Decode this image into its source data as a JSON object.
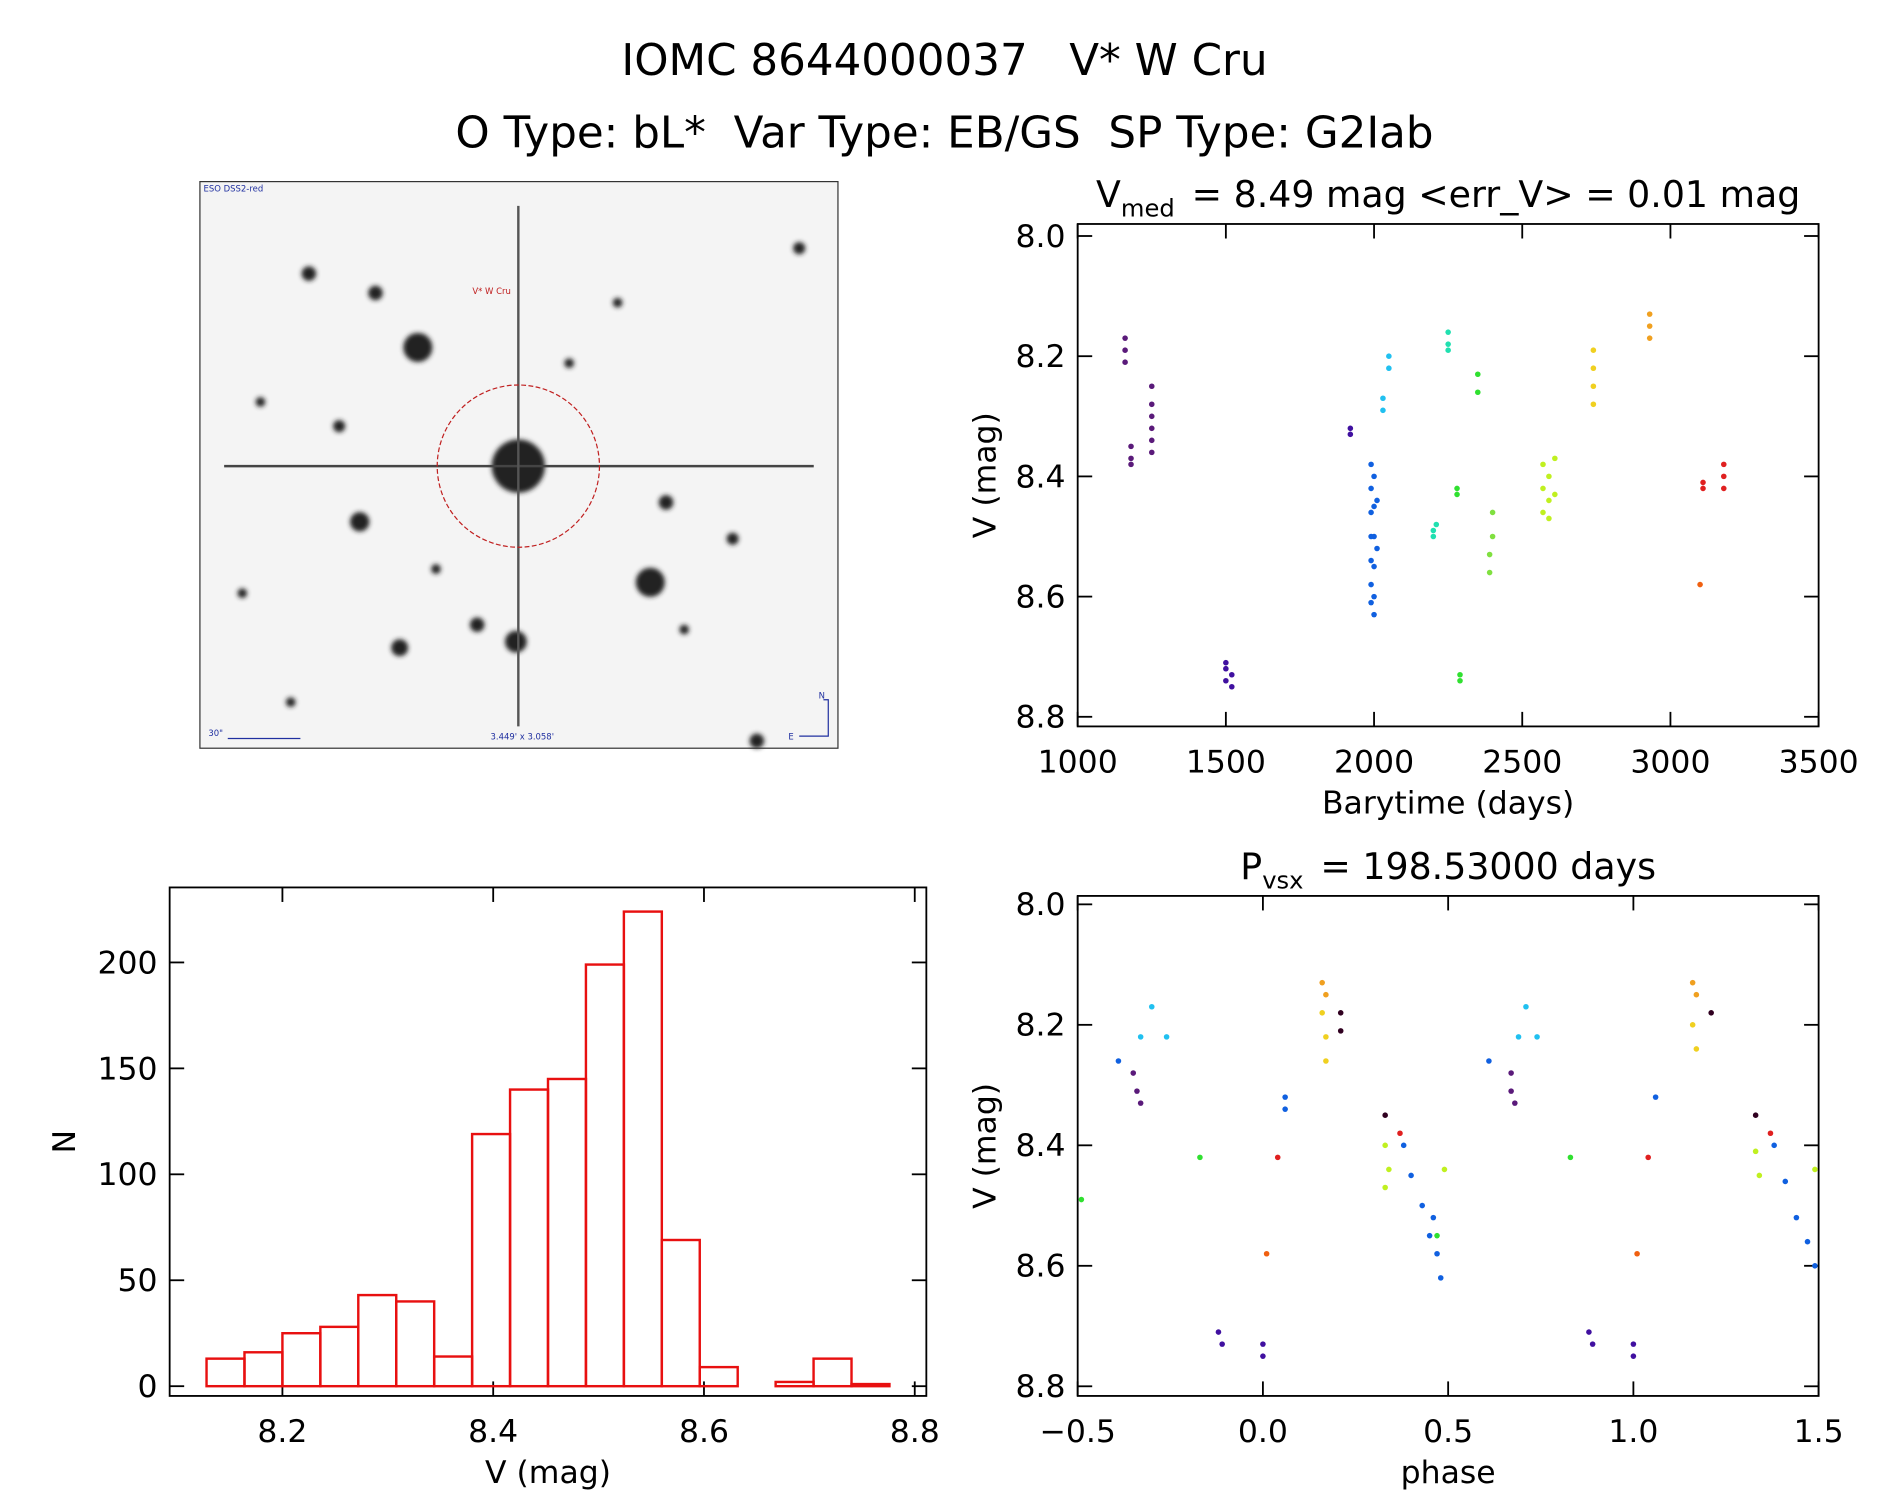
{
  "header": {
    "title": "IOMC 8644000037   V* W Cru",
    "subtitle": "O Type: bL*  Var Type: EB/GS  SP Type: G2Iab"
  },
  "image": {
    "source_label": "ESO DSS2-red",
    "target_label": "V* W Cru",
    "scale_label": "30\"",
    "size_label": "3.449' x 3.058'",
    "compass_n": "N",
    "compass_e": "E"
  },
  "chart_data": [
    {
      "type": "scatter",
      "title": "V",
      "title_subscript": "med",
      "title_rest": "= 8.49 mag <err_V> = 0.01 mag",
      "x_label": "Barytime (days)",
      "y_label": "V (mag)",
      "xlim": [
        1000,
        3500
      ],
      "xticks": [
        1000,
        1500,
        2000,
        2500,
        3000,
        3500
      ],
      "ylim": [
        8.816,
        7.98
      ],
      "yticks": [
        {
          "value": 8,
          "label": "8.0"
        },
        8.2,
        8.4,
        8.6,
        8.8
      ],
      "series": [
        {
          "color": "#5a1a7a",
          "x": [
            1160,
            1160,
            1160,
            1250,
            1250,
            1250,
            1250,
            1250,
            1250,
            1180,
            1180,
            1180
          ],
          "values": [
            8.17,
            8.19,
            8.21,
            8.25,
            8.28,
            8.3,
            8.32,
            8.34,
            8.36,
            8.35,
            8.37,
            8.38
          ]
        },
        {
          "color": "#4010a0",
          "x": [
            1500,
            1500,
            1500,
            1520,
            1520,
            1920,
            1920
          ],
          "values": [
            8.71,
            8.72,
            8.74,
            8.73,
            8.75,
            8.32,
            8.33
          ]
        },
        {
          "color": "#1060e0",
          "x": [
            1990,
            1990,
            1990,
            1990,
            1990,
            1990,
            1990,
            2000,
            2000,
            2000,
            2000,
            2000,
            2000,
            2010,
            2010
          ],
          "values": [
            8.38,
            8.42,
            8.46,
            8.5,
            8.54,
            8.58,
            8.61,
            8.4,
            8.45,
            8.5,
            8.55,
            8.6,
            8.63,
            8.44,
            8.52
          ]
        },
        {
          "color": "#20c0f0",
          "x": [
            2030,
            2030,
            2050,
            2050
          ],
          "values": [
            8.27,
            8.29,
            8.2,
            8.22
          ]
        },
        {
          "color": "#20e0b0",
          "x": [
            2200,
            2200,
            2210,
            2250,
            2250,
            2250
          ],
          "values": [
            8.49,
            8.5,
            8.48,
            8.16,
            8.18,
            8.19
          ]
        },
        {
          "color": "#30e030",
          "x": [
            2280,
            2280,
            2290,
            2290,
            2350,
            2350
          ],
          "values": [
            8.42,
            8.43,
            8.73,
            8.74,
            8.23,
            8.26
          ]
        },
        {
          "color": "#80e040",
          "x": [
            2390,
            2390,
            2400,
            2400
          ],
          "values": [
            8.53,
            8.56,
            8.46,
            8.5
          ]
        },
        {
          "color": "#c0f020",
          "x": [
            2570,
            2570,
            2570,
            2590,
            2590,
            2590,
            2610,
            2610
          ],
          "values": [
            8.38,
            8.42,
            8.46,
            8.4,
            8.44,
            8.47,
            8.37,
            8.43
          ]
        },
        {
          "color": "#f0d020",
          "x": [
            2740,
            2740,
            2740,
            2740
          ],
          "values": [
            8.19,
            8.22,
            8.25,
            8.28
          ]
        },
        {
          "color": "#f0a020",
          "x": [
            2930,
            2930,
            2930
          ],
          "values": [
            8.13,
            8.15,
            8.17
          ]
        },
        {
          "color": "#f06010",
          "x": [
            3100
          ],
          "values": [
            8.58
          ]
        },
        {
          "color": "#e02020",
          "x": [
            3110,
            3110,
            3180,
            3180,
            3180
          ],
          "values": [
            8.41,
            8.42,
            8.38,
            8.4,
            8.42
          ]
        }
      ]
    },
    {
      "type": "scatter",
      "title": "P",
      "title_subscript": "vsx",
      "title_rest": "= 198.53000 days",
      "x_label": "phase",
      "y_label": "V (mag)",
      "xlim": [
        -0.5,
        1.5
      ],
      "xticks": [
        {
          "value": -0.5,
          "label": "−0.5"
        },
        {
          "value": 0,
          "label": "0.0"
        },
        0.5,
        {
          "value": 1,
          "label": "1.0"
        },
        1.5
      ],
      "ylim": [
        8.816,
        7.986
      ],
      "yticks": [
        {
          "value": 8,
          "label": "8.0"
        },
        8.2,
        8.4,
        8.6,
        8.8
      ],
      "series": [
        {
          "color": "#5a1a7a",
          "x": [
            -0.35,
            -0.34,
            -0.33,
            0.67,
            0.67,
            0.68
          ],
          "values": [
            8.28,
            8.31,
            8.33,
            8.28,
            8.31,
            8.33
          ]
        },
        {
          "color": "#4010a0",
          "x": [
            -0.12,
            -0.11,
            0.88,
            0.89,
            0,
            0,
            1,
            1
          ],
          "values": [
            8.71,
            8.73,
            8.71,
            8.73,
            8.73,
            8.75,
            8.73,
            8.75
          ]
        },
        {
          "color": "#1060e0",
          "x": [
            0.06,
            0.06,
            1.06,
            0.38,
            0.4,
            0.43,
            0.45,
            0.47,
            0.48,
            0.46,
            1.38,
            1.41,
            1.44,
            1.47,
            1.49,
            -0.39,
            0.61
          ],
          "values": [
            8.32,
            8.34,
            8.32,
            8.4,
            8.45,
            8.5,
            8.55,
            8.58,
            8.62,
            8.52,
            8.4,
            8.46,
            8.52,
            8.56,
            8.6,
            8.26,
            8.26
          ]
        },
        {
          "color": "#20c0f0",
          "x": [
            -0.33,
            -0.3,
            -0.26,
            0.69,
            0.71,
            0.74
          ],
          "values": [
            8.22,
            8.17,
            8.22,
            8.22,
            8.17,
            8.22
          ]
        },
        {
          "color": "#30e030",
          "x": [
            -0.17,
            0.83,
            -0.49,
            0.47
          ],
          "values": [
            8.42,
            8.42,
            8.49,
            8.55
          ]
        },
        {
          "color": "#c0f020",
          "x": [
            0.33,
            0.34,
            0.33,
            1.33,
            1.34,
            0.49,
            1.49
          ],
          "values": [
            8.4,
            8.44,
            8.47,
            8.41,
            8.45,
            8.44,
            8.44
          ]
        },
        {
          "color": "#f0d020",
          "x": [
            0.16,
            0.17,
            0.17,
            1.16,
            1.17
          ],
          "values": [
            8.18,
            8.22,
            8.26,
            8.2,
            8.24
          ]
        },
        {
          "color": "#f0a020",
          "x": [
            0.16,
            0.17,
            1.16,
            1.17
          ],
          "values": [
            8.13,
            8.15,
            8.13,
            8.15
          ]
        },
        {
          "color": "#f06010",
          "x": [
            0.01,
            1.01
          ],
          "values": [
            8.58,
            8.58
          ]
        },
        {
          "color": "#e02020",
          "x": [
            0.04,
            1.04,
            0.37,
            1.37
          ],
          "values": [
            8.42,
            8.42,
            8.38,
            8.38
          ]
        },
        {
          "color": "#300020",
          "x": [
            0.21,
            0.21,
            1.21,
            0.33,
            1.33
          ],
          "values": [
            8.18,
            8.21,
            8.18,
            8.35,
            8.35
          ]
        }
      ]
    },
    {
      "type": "histogram",
      "x_label": "V (mag)",
      "y_label": "N",
      "color": "#e81010",
      "bins": [
        8.128,
        8.164,
        8.2,
        8.236,
        8.272,
        8.308,
        8.344,
        8.38,
        8.416,
        8.452,
        8.488,
        8.524,
        8.56,
        8.596,
        8.632,
        8.668,
        8.704,
        8.74,
        8.776
      ],
      "values": [
        13,
        16,
        25,
        28,
        43,
        40,
        14,
        119,
        140,
        145,
        199,
        224,
        69,
        9,
        0,
        2,
        13,
        1
      ],
      "xlim": [
        8.093,
        8.811
      ],
      "xticks": [
        8.2,
        8.4,
        8.6,
        8.8
      ],
      "ylim": [
        -4.6,
        235.4
      ],
      "yticks": [
        0,
        50,
        100,
        150,
        200
      ]
    }
  ]
}
